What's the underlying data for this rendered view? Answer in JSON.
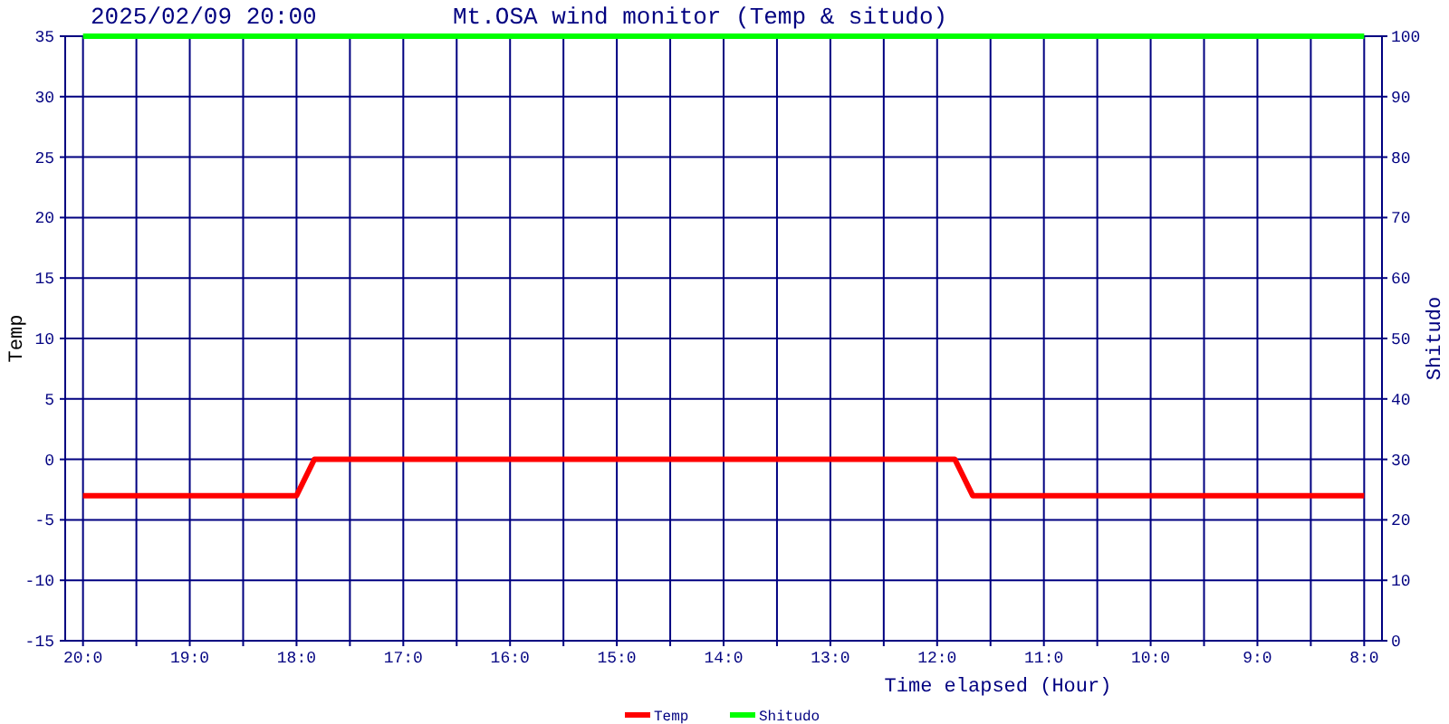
{
  "chart_data": {
    "type": "line",
    "title": "Mt.OSA wind monitor (Temp & situdo)",
    "subtitle": "2025/02/09 20:00",
    "xlabel": "Time elapsed (Hour)",
    "ylabel": "Temp",
    "y2label": "Shitudo",
    "xlim": [
      "2025-02-09T20:10",
      "2025-02-09T07:50"
    ],
    "xticks": [
      {
        "value": "2025-02-09T20:00",
        "label": "20:0"
      },
      {
        "value": "2025-02-09T19:30",
        "label": null
      },
      {
        "value": "2025-02-09T19:00",
        "label": "19:0"
      },
      {
        "value": "2025-02-09T18:30",
        "label": null
      },
      {
        "value": "2025-02-09T18:00",
        "label": "18:0"
      },
      {
        "value": "2025-02-09T17:30",
        "label": null
      },
      {
        "value": "2025-02-09T17:00",
        "label": "17:0"
      },
      {
        "value": "2025-02-09T16:30",
        "label": null
      },
      {
        "value": "2025-02-09T16:00",
        "label": "16:0"
      },
      {
        "value": "2025-02-09T15:30",
        "label": null
      },
      {
        "value": "2025-02-09T15:00",
        "label": "15:0"
      },
      {
        "value": "2025-02-09T14:30",
        "label": null
      },
      {
        "value": "2025-02-09T14:00",
        "label": "14:0"
      },
      {
        "value": "2025-02-09T13:30",
        "label": null
      },
      {
        "value": "2025-02-09T13:00",
        "label": "13:0"
      },
      {
        "value": "2025-02-09T12:30",
        "label": null
      },
      {
        "value": "2025-02-09T12:00",
        "label": "12:0"
      },
      {
        "value": "2025-02-09T11:30",
        "label": null
      },
      {
        "value": "2025-02-09T11:00",
        "label": "11:0"
      },
      {
        "value": "2025-02-09T10:30",
        "label": null
      },
      {
        "value": "2025-02-09T10:00",
        "label": "10:0"
      },
      {
        "value": "2025-02-09T09:30",
        "label": null
      },
      {
        "value": "2025-02-09T09:00",
        "label": "9:0"
      },
      {
        "value": "2025-02-09T08:30",
        "label": null
      },
      {
        "value": "2025-02-09T08:00",
        "label": "8:0"
      }
    ],
    "ylim": [
      -15,
      35
    ],
    "yticks": [
      -15,
      -10,
      -5,
      0,
      5,
      10,
      15,
      20,
      25,
      30,
      35
    ],
    "y2lim": [
      0,
      100
    ],
    "y2ticks": [
      0,
      10,
      20,
      30,
      40,
      50,
      60,
      70,
      80,
      90,
      100
    ],
    "grid": true,
    "legend": "bottom",
    "marker": "none",
    "line_style": "solid",
    "series": [
      {
        "name": "Temp",
        "color": "#ff0000",
        "x": [
          "2025-02-09T20:00",
          "2025-02-09T18:00",
          "2025-02-09T17:50",
          "2025-02-09T11:50",
          "2025-02-09T11:40",
          "2025-02-09T08:00"
        ],
        "values": [
          -3,
          -3,
          0,
          0,
          -3,
          -3
        ]
      },
      {
        "name": "Shitudo",
        "color": "#00ff00",
        "axis": "y2",
        "x": [
          "2025-02-09T20:00",
          "2025-02-09T08:00"
        ],
        "values": [
          100,
          100
        ]
      }
    ]
  }
}
